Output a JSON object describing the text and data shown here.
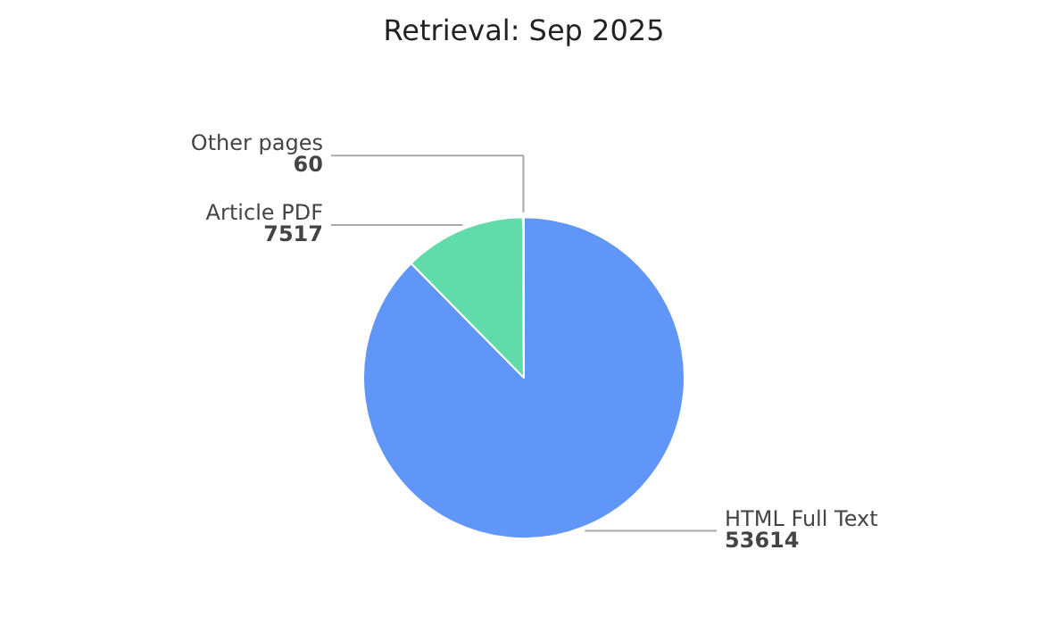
{
  "chart_data": {
    "type": "pie",
    "title": "Retrieval: Sep 2025",
    "categories": [
      "HTML Full Text",
      "Article PDF",
      "Other pages"
    ],
    "values": [
      53614,
      7517,
      60
    ],
    "colors": [
      "#6196f9",
      "#61dba9",
      "#9aa0a6"
    ],
    "data_labels": true,
    "legend": false
  }
}
